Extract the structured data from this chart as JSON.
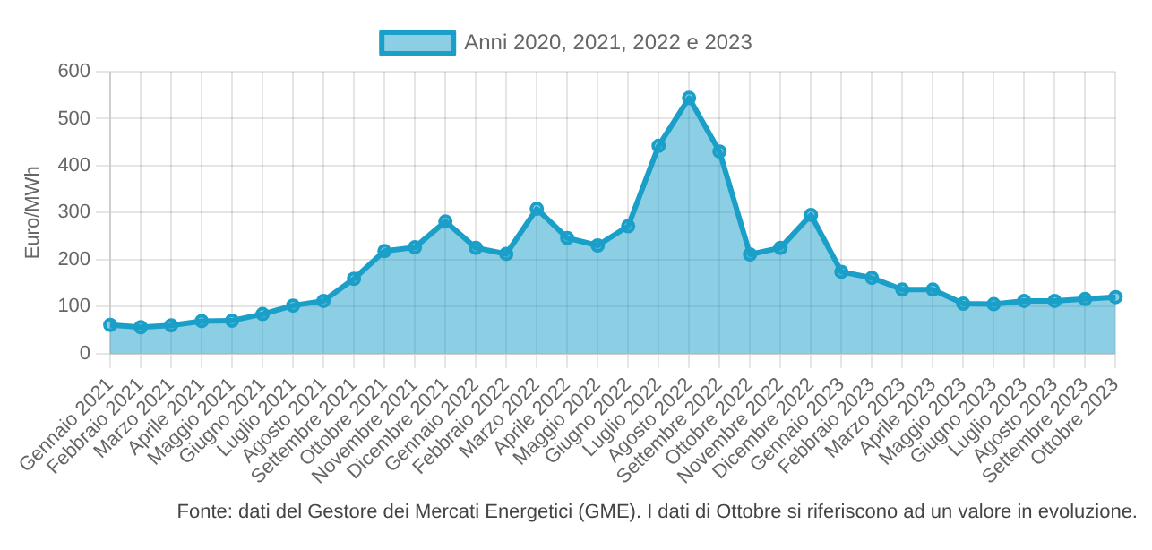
{
  "chart_data": {
    "type": "area",
    "ylabel": "Euro/MWh",
    "categories": [
      "Gennaio 2021",
      "Febbraio 2021",
      "Marzo 2021",
      "Aprile 2021",
      "Maggio 2021",
      "Giugno 2021",
      "Luglio 2021",
      "Agosto 2021",
      "Settembre 2021",
      "Ottobre 2021",
      "Novembre 2021",
      "Dicembre 2021",
      "Gennaio 2022",
      "Febbraio 2022",
      "Marzo 2022",
      "Aprile 2022",
      "Maggio 2022",
      "Giugno 2022",
      "Luglio 2022",
      "Agosto 2022",
      "Settembre 2022",
      "Ottobre 2022",
      "Novembre 2022",
      "Dicembre 2022",
      "Gennaio 2023",
      "Febbraio 2023",
      "Marzo 2023",
      "Aprile 2023",
      "Maggio 2023",
      "Giugno 2023",
      "Luglio 2023",
      "Agosto 2023",
      "Settembre 2023",
      "Ottobre 2023"
    ],
    "series": [
      {
        "name": "Anni 2020, 2021, 2022 e 2023",
        "color": "#1a9fc9",
        "values": [
          61,
          56,
          60,
          69,
          70,
          84,
          102,
          112,
          159,
          218,
          226,
          281,
          225,
          212,
          308,
          246,
          230,
          271,
          442,
          544,
          430,
          211,
          225,
          295,
          174,
          161,
          136,
          136,
          106,
          105,
          112,
          112,
          116,
          120
        ]
      }
    ],
    "ylim": [
      0,
      600
    ],
    "yticks": [
      0,
      100,
      200,
      300,
      400,
      500,
      600
    ],
    "grid": true,
    "legend": "top",
    "marker": "circle",
    "line_style": "solid",
    "annotations": [
      "Fonte: dati del Gestore dei Mercati Energetici (GME). I dati di Ottobre si riferiscono ad un valore in evoluzione."
    ]
  }
}
